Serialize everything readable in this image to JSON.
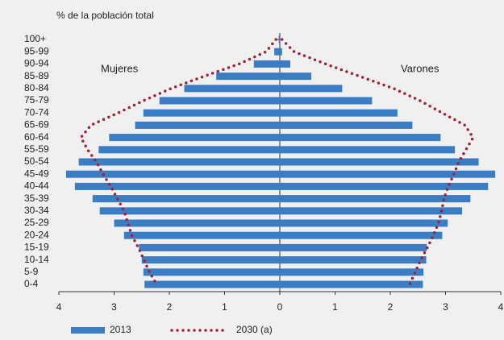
{
  "chart_data": {
    "type": "pyramid",
    "axis_title": "% de la población total",
    "left_label": "Mujeres",
    "right_label": "Varones",
    "categories": [
      "100+",
      "95-99",
      "90-94",
      "85-89",
      "80-84",
      "75-79",
      "70-74",
      "65-69",
      "60-64",
      "55-59",
      "50-54",
      "45-49",
      "40-44",
      "35-39",
      "30-34",
      "25-29",
      "20-24",
      "15-19",
      "10-14",
      "5-9",
      "0-4"
    ],
    "xlim": [
      0,
      4
    ],
    "xticks": [
      0,
      1,
      2,
      3,
      4
    ],
    "series": [
      {
        "name": "2013",
        "style": "bar",
        "color": "#3b7dc4",
        "left": [
          0.02,
          0.1,
          0.47,
          1.15,
          1.73,
          2.18,
          2.47,
          2.62,
          3.09,
          3.28,
          3.64,
          3.87,
          3.71,
          3.39,
          3.26,
          3.0,
          2.82,
          2.55,
          2.5,
          2.47,
          2.45
        ],
        "right": [
          0.01,
          0.04,
          0.19,
          0.57,
          1.13,
          1.67,
          2.13,
          2.4,
          2.91,
          3.17,
          3.6,
          3.9,
          3.77,
          3.45,
          3.3,
          3.04,
          2.94,
          2.66,
          2.65,
          2.6,
          2.59
        ]
      },
      {
        "name": "2030 (a)",
        "style": "dotted",
        "color": "#9b2335",
        "left": [
          0.07,
          0.25,
          0.74,
          1.37,
          1.97,
          2.47,
          2.93,
          3.42,
          3.6,
          3.48,
          3.32,
          3.2,
          3.06,
          2.94,
          2.82,
          2.75,
          2.68,
          2.56,
          2.46,
          2.36,
          2.23
        ],
        "right": [
          0.04,
          0.26,
          0.83,
          1.44,
          2.06,
          2.54,
          2.94,
          3.35,
          3.5,
          3.37,
          3.24,
          3.15,
          3.05,
          2.97,
          2.93,
          2.87,
          2.78,
          2.67,
          2.55,
          2.45,
          2.35
        ]
      }
    ]
  }
}
